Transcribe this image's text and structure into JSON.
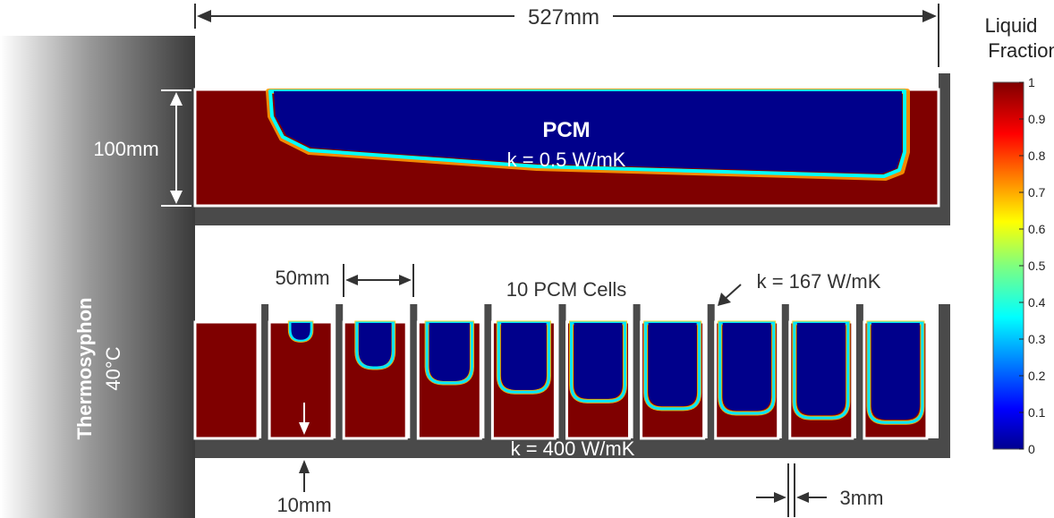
{
  "dimensions": {
    "total_width": "527mm",
    "height": "100mm",
    "cell_width": "50mm",
    "fin_height": "10mm",
    "wall_thickness": "3mm"
  },
  "thermosyphon": {
    "label": "Thermosyphon",
    "temperature": "40°C"
  },
  "top_case": {
    "pcm_title": "PCM",
    "pcm_conductivity": "k = 0.5 W/mK"
  },
  "bottom_case": {
    "cells_label": "10 PCM Cells",
    "wall_conductivity": "k = 167 W/mK",
    "base_conductivity": "k = 400 W/mK",
    "cells": [
      0.0,
      0.12,
      0.3,
      0.4,
      0.46,
      0.52,
      0.57,
      0.6,
      0.63,
      0.66
    ]
  },
  "colorbar": {
    "title_line1": "Liquid",
    "title_line2": "Fraction",
    "ticks": [
      "1",
      "0.9",
      "0.8",
      "0.7",
      "0.6",
      "0.5",
      "0.4",
      "0.3",
      "0.2",
      "0.1",
      "0"
    ],
    "colors": {
      "low": "#00008f",
      "high": "#800000"
    }
  },
  "colors": {
    "solid_region": "#7f0000",
    "liquid_region": "#00008b",
    "wall": "#4a4a4a",
    "border": "#ffffff"
  }
}
